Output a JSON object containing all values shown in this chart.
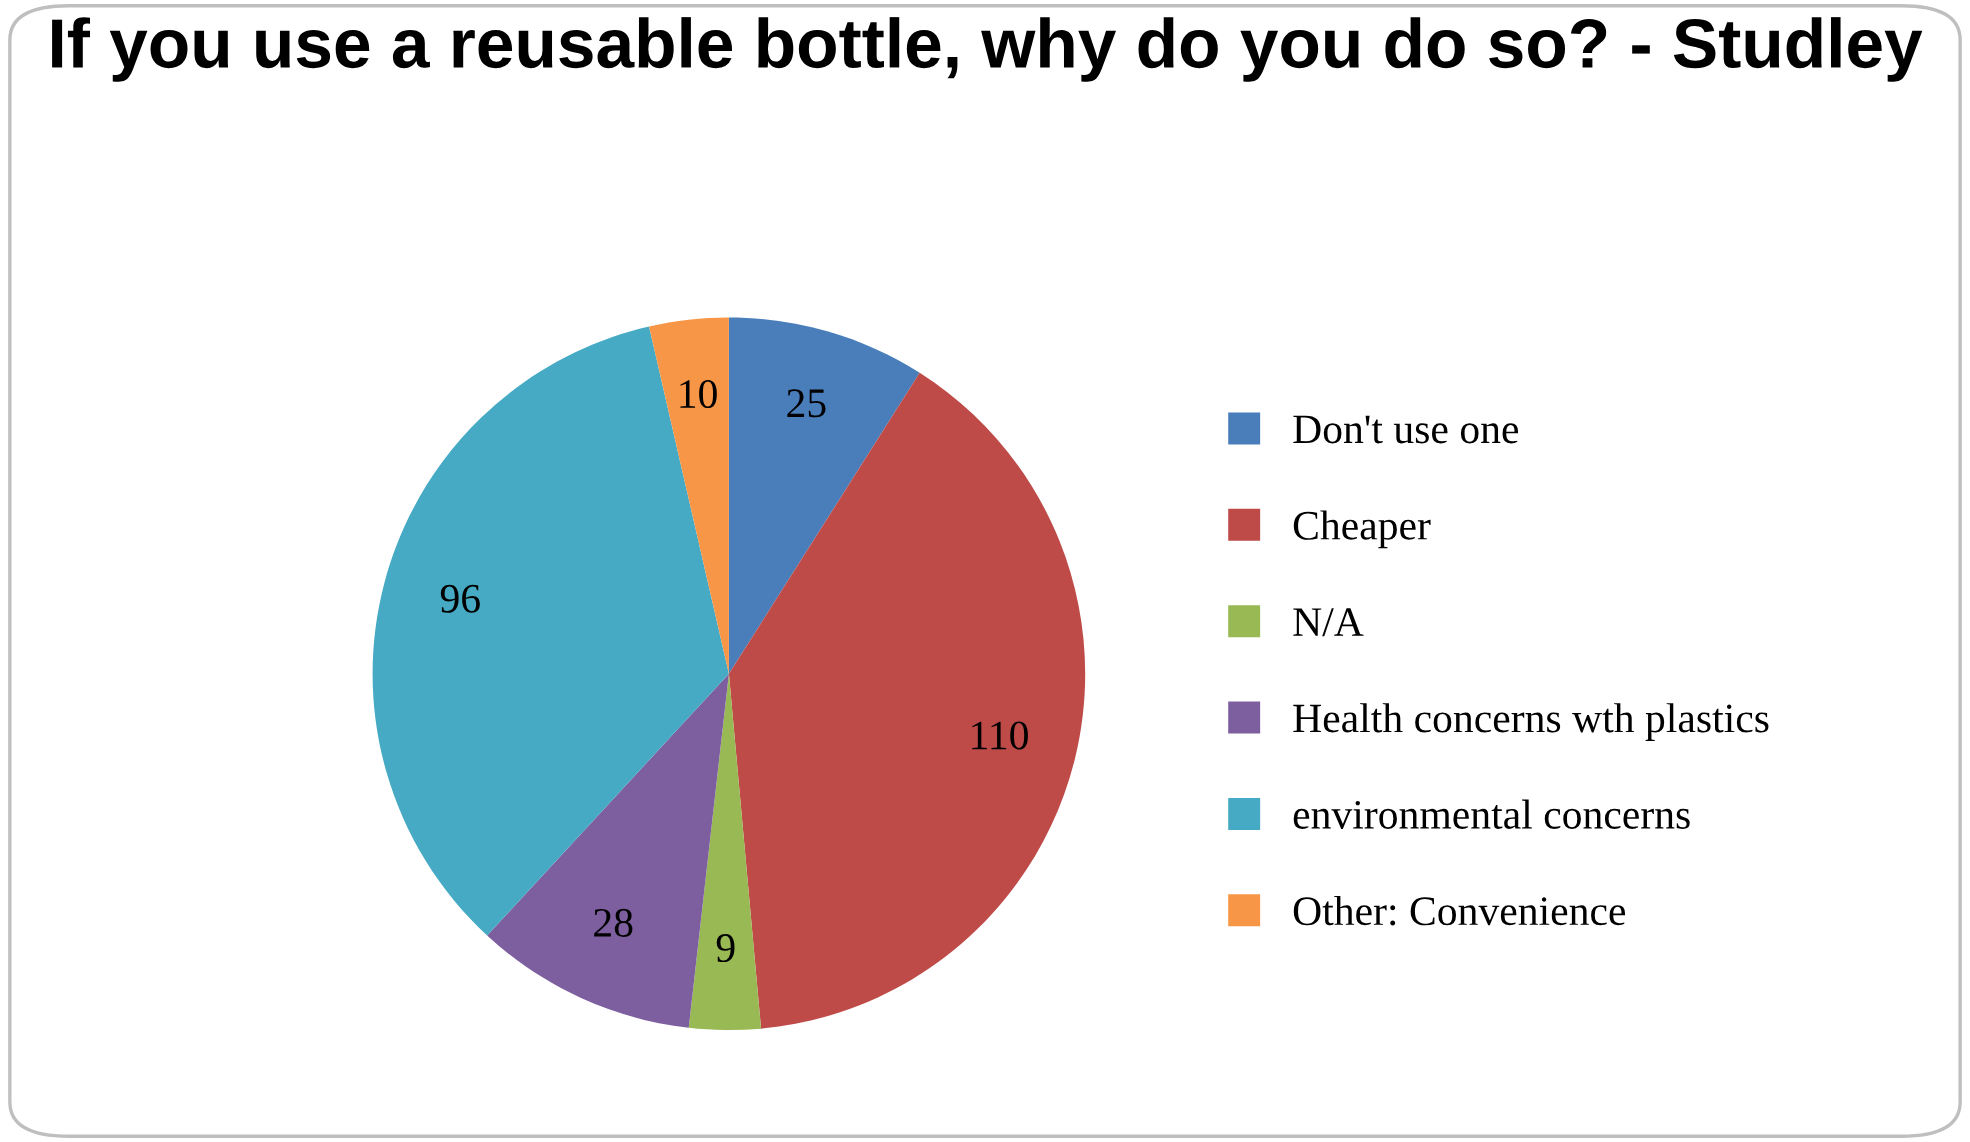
{
  "chart_data": {
    "type": "pie",
    "title": "If you use a reusable bottle, why do you do so? - Studley",
    "categories": [
      "Don't use one",
      "Cheaper",
      "N/A",
      "Health concerns wth plastics",
      "environmental concerns",
      "Other: Convenience"
    ],
    "values": [
      25,
      110,
      9,
      28,
      96,
      10
    ],
    "colors": [
      "#4a7ebb",
      "#be4b48",
      "#98b954",
      "#7d5fa0",
      "#46aac5",
      "#f79646"
    ],
    "data_labels": true,
    "legend": "right"
  }
}
